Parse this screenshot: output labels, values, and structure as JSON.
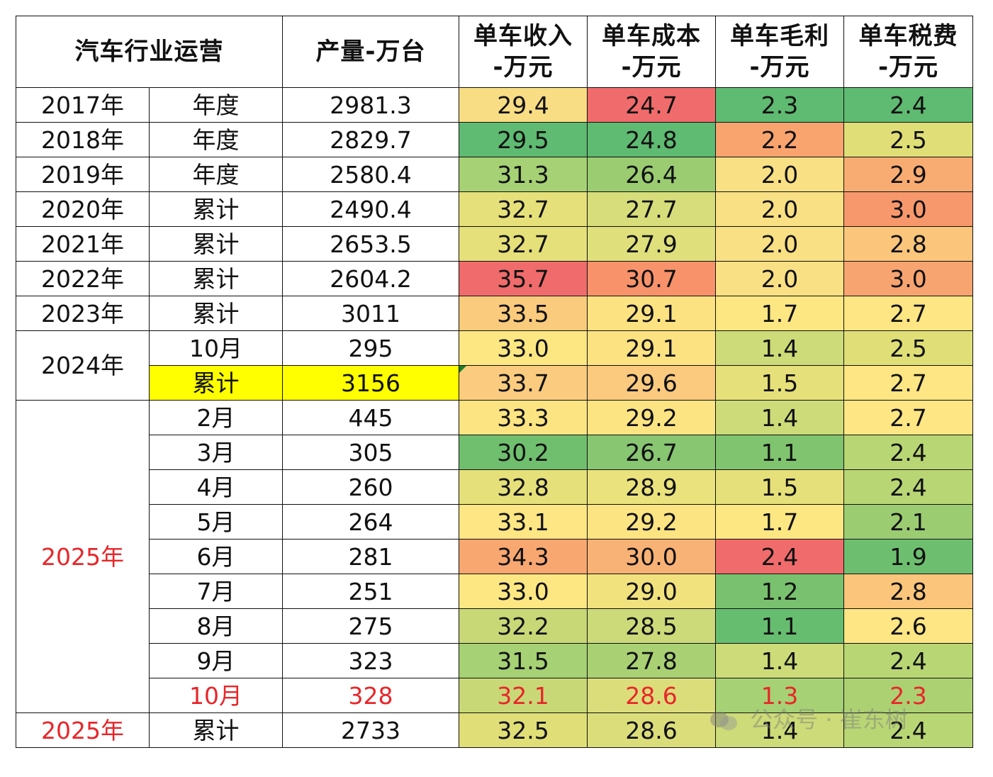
{
  "chart_data": {
    "type": "table",
    "header": {
      "group": "汽车行业运营",
      "output": "产量-万台",
      "metrics": [
        {
          "l1": "单车收入",
          "l2": "-万元"
        },
        {
          "l1": "单车成本",
          "l2": "-万元"
        },
        {
          "l1": "单车毛利",
          "l2": "-万元"
        },
        {
          "l1": "单车税费",
          "l2": "-万元"
        }
      ]
    },
    "rows": [
      {
        "year": "2017年",
        "period": "年度",
        "output": "2981.3",
        "values": [
          "29.4",
          "24.7",
          "2.3",
          "2.4"
        ]
      },
      {
        "year": "2018年",
        "period": "年度",
        "output": "2829.7",
        "values": [
          "29.5",
          "24.8",
          "2.2",
          "2.5"
        ]
      },
      {
        "year": "2019年",
        "period": "年度",
        "output": "2580.4",
        "values": [
          "31.3",
          "26.4",
          "2.0",
          "2.9"
        ]
      },
      {
        "year": "2020年",
        "period": "累计",
        "output": "2490.4",
        "values": [
          "32.7",
          "27.7",
          "2.0",
          "3.0"
        ]
      },
      {
        "year": "2021年",
        "period": "累计",
        "output": "2653.5",
        "values": [
          "32.7",
          "27.9",
          "2.0",
          "2.8"
        ]
      },
      {
        "year": "2022年",
        "period": "累计",
        "output": "2604.2",
        "values": [
          "35.7",
          "30.7",
          "2.0",
          "3.0"
        ]
      },
      {
        "year": "2023年",
        "period": "累计",
        "output": "3011",
        "values": [
          "33.5",
          "29.1",
          "1.7",
          "2.7"
        ]
      },
      {
        "year": "2024年",
        "period": "10月",
        "output": "295",
        "values": [
          "33.0",
          "29.1",
          "1.4",
          "2.5"
        ]
      },
      {
        "year": "2024年",
        "period": "累计",
        "output": "3156",
        "values": [
          "33.7",
          "29.6",
          "1.5",
          "2.7"
        ],
        "highlight": "#ffff00"
      },
      {
        "year": "2025年",
        "period": "2月",
        "output": "445",
        "values": [
          "33.3",
          "29.2",
          "1.4",
          "2.7"
        ]
      },
      {
        "year": "2025年",
        "period": "3月",
        "output": "305",
        "values": [
          "30.2",
          "26.7",
          "1.1",
          "2.4"
        ]
      },
      {
        "year": "2025年",
        "period": "4月",
        "output": "260",
        "values": [
          "32.8",
          "28.9",
          "1.5",
          "2.4"
        ]
      },
      {
        "year": "2025年",
        "period": "5月",
        "output": "264",
        "values": [
          "33.1",
          "29.2",
          "1.7",
          "2.1"
        ]
      },
      {
        "year": "2025年",
        "period": "6月",
        "output": "281",
        "values": [
          "34.3",
          "30.0",
          "2.4",
          "1.9"
        ]
      },
      {
        "year": "2025年",
        "period": "7月",
        "output": "251",
        "values": [
          "33.0",
          "29.0",
          "1.2",
          "2.8"
        ]
      },
      {
        "year": "2025年",
        "period": "8月",
        "output": "275",
        "values": [
          "32.2",
          "28.5",
          "1.1",
          "2.6"
        ]
      },
      {
        "year": "2025年",
        "period": "9月",
        "output": "323",
        "values": [
          "31.5",
          "27.8",
          "1.4",
          "2.4"
        ]
      },
      {
        "year": "2025年",
        "period": "10月",
        "output": "328",
        "values": [
          "32.1",
          "28.6",
          "1.3",
          "2.3"
        ],
        "emphasis": true
      },
      {
        "year": "2025年",
        "period": "累计",
        "output": "2733",
        "values": [
          "32.5",
          "28.6",
          "1.4",
          "2.4"
        ]
      }
    ],
    "year_groups": [
      {
        "label": "2017年",
        "start": 0,
        "span": 1
      },
      {
        "label": "2018年",
        "start": 1,
        "span": 1
      },
      {
        "label": "2019年",
        "start": 2,
        "span": 1
      },
      {
        "label": "2020年",
        "start": 3,
        "span": 1
      },
      {
        "label": "2021年",
        "start": 4,
        "span": 1
      },
      {
        "label": "2022年",
        "start": 5,
        "span": 1
      },
      {
        "label": "2023年",
        "start": 6,
        "span": 1
      },
      {
        "label": "2024年",
        "start": 7,
        "span": 2
      },
      {
        "label": "2025年",
        "start": 9,
        "span": 9,
        "color": "#e8262a"
      },
      {
        "label": "2025年",
        "start": 18,
        "span": 1,
        "color": "#e8262a"
      }
    ],
    "cell_colors": [
      [
        "#f9dd84",
        "#f06b6b",
        "#5fba72",
        "#5fba72"
      ],
      [
        "#5fba72",
        "#5fba72",
        "#f9a46f",
        "#e0df77"
      ],
      [
        "#a6d174",
        "#9bcc72",
        "#f9e084",
        "#f9ac72"
      ],
      [
        "#e6e07a",
        "#d6dd7a",
        "#f9e084",
        "#f7986c"
      ],
      [
        "#e6e07a",
        "#dfe07c",
        "#f9e084",
        "#fbc67b"
      ],
      [
        "#f06b6b",
        "#f7926b",
        "#f9e084",
        "#f8a470"
      ],
      [
        "#fbcb7d",
        "#fde282",
        "#fde783",
        "#fde683"
      ],
      [
        "#fde783",
        "#fde282",
        "#cddb78",
        "#e0df77"
      ],
      [
        "#fbcc7f",
        "#fbca7f",
        "#e6e07a",
        "#fde683"
      ],
      [
        "#fde483",
        "#fde483",
        "#cddb78",
        "#fde683"
      ],
      [
        "#70bf6f",
        "#88c672",
        "#80c46f",
        "#b9d675"
      ],
      [
        "#e6e07a",
        "#eae27c",
        "#e6e07a",
        "#b9d675"
      ],
      [
        "#fde683",
        "#fde483",
        "#fde783",
        "#9bcc72"
      ],
      [
        "#f8a771",
        "#f9b275",
        "#f06b6b",
        "#6ebe70"
      ],
      [
        "#fde783",
        "#f1e27e",
        "#79c16f",
        "#fbc67b"
      ],
      [
        "#c9d877",
        "#ccda7a",
        "#66bd70",
        "#fde683"
      ],
      [
        "#a6d174",
        "#a9d174",
        "#cddb78",
        "#b9d675"
      ],
      [
        "#c9d877",
        "#dbdd7b",
        "#a6d174",
        "#acd172"
      ],
      [
        "#e0df77",
        "#dbdd7b",
        "#cddb78",
        "#b9d675"
      ]
    ]
  },
  "watermark": "公众号 · 崔东树"
}
